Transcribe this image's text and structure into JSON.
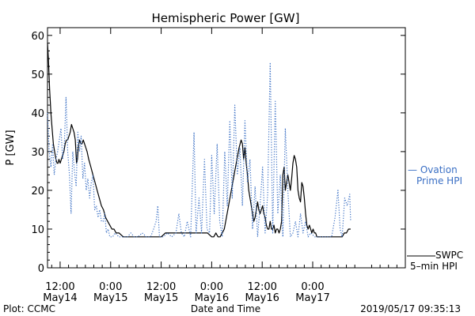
{
  "chart_data": {
    "type": "line",
    "title": "Hemispheric Power [GW]",
    "ylabel": "P [GW]",
    "xlabel": "Date and Time",
    "ylim": [
      0,
      62
    ],
    "yticks": [
      0,
      10,
      20,
      30,
      40,
      50,
      60
    ],
    "x_unit": "hours since 2019-05-14 00:00 UTC",
    "xlim": [
      9,
      94
    ],
    "xticks": [
      {
        "x": 12,
        "line1": "12:00",
        "line2": "May14"
      },
      {
        "x": 24,
        "line1": "0:00",
        "line2": "May15"
      },
      {
        "x": 36,
        "line1": "12:00",
        "line2": "May15"
      },
      {
        "x": 48,
        "line1": "0:00",
        "line2": "May16"
      },
      {
        "x": 60,
        "line1": "12:00",
        "line2": "May16"
      },
      {
        "x": 72,
        "line1": "0:00",
        "line2": "May17"
      }
    ],
    "series": [
      {
        "name": "SWPC 5-min HPI",
        "legend_lines": [
          "SWPC",
          "5–min HPI"
        ],
        "color": "#000000",
        "style": "solid",
        "points": [
          [
            9.0,
            58
          ],
          [
            9.2,
            54
          ],
          [
            9.5,
            46
          ],
          [
            9.8,
            40
          ],
          [
            10.1,
            36
          ],
          [
            10.4,
            32
          ],
          [
            10.7,
            30
          ],
          [
            11.0,
            28
          ],
          [
            11.3,
            27
          ],
          [
            11.5,
            27
          ],
          [
            11.7,
            28
          ],
          [
            12.0,
            27
          ],
          [
            12.3,
            28
          ],
          [
            12.6,
            29
          ],
          [
            12.9,
            30
          ],
          [
            13.2,
            32
          ],
          [
            13.5,
            33
          ],
          [
            13.8,
            33
          ],
          [
            14.1,
            34
          ],
          [
            14.4,
            35
          ],
          [
            14.7,
            37
          ],
          [
            15.0,
            36
          ],
          [
            15.3,
            35
          ],
          [
            15.6,
            33
          ],
          [
            15.9,
            27
          ],
          [
            16.1,
            28
          ],
          [
            16.3,
            31
          ],
          [
            16.6,
            33
          ],
          [
            16.9,
            32
          ],
          [
            17.2,
            32
          ],
          [
            17.5,
            33
          ],
          [
            17.8,
            32
          ],
          [
            18.1,
            31
          ],
          [
            18.4,
            30
          ],
          [
            18.8,
            28
          ],
          [
            19.3,
            26
          ],
          [
            19.8,
            24
          ],
          [
            20.3,
            22
          ],
          [
            20.8,
            20
          ],
          [
            21.3,
            18
          ],
          [
            21.8,
            16
          ],
          [
            22.3,
            15
          ],
          [
            22.8,
            13
          ],
          [
            23.3,
            12
          ],
          [
            23.8,
            11
          ],
          [
            24.3,
            10
          ],
          [
            24.8,
            10
          ],
          [
            25.3,
            9
          ],
          [
            26.0,
            9
          ],
          [
            27.0,
            8
          ],
          [
            28.0,
            8
          ],
          [
            29.0,
            8
          ],
          [
            30.0,
            8
          ],
          [
            31.0,
            8
          ],
          [
            32.0,
            8
          ],
          [
            33.0,
            8
          ],
          [
            34.0,
            8
          ],
          [
            35.0,
            8
          ],
          [
            36.0,
            8
          ],
          [
            37.0,
            9
          ],
          [
            38.0,
            9
          ],
          [
            39.0,
            9
          ],
          [
            40.0,
            9
          ],
          [
            41.0,
            9
          ],
          [
            42.0,
            9
          ],
          [
            43.0,
            9
          ],
          [
            44.0,
            9
          ],
          [
            45.0,
            9
          ],
          [
            46.0,
            9
          ],
          [
            47.0,
            9
          ],
          [
            48.0,
            8
          ],
          [
            48.5,
            8
          ],
          [
            49.0,
            9
          ],
          [
            49.5,
            8
          ],
          [
            50.0,
            8
          ],
          [
            50.5,
            9
          ],
          [
            51.0,
            10
          ],
          [
            51.5,
            13
          ],
          [
            52.0,
            16
          ],
          [
            52.5,
            19
          ],
          [
            53.0,
            22
          ],
          [
            53.5,
            25
          ],
          [
            54.0,
            28
          ],
          [
            54.5,
            31
          ],
          [
            55.0,
            33
          ],
          [
            55.3,
            32
          ],
          [
            55.6,
            28
          ],
          [
            55.9,
            31
          ],
          [
            56.2,
            27
          ],
          [
            56.5,
            24
          ],
          [
            56.8,
            20
          ],
          [
            57.1,
            18
          ],
          [
            57.4,
            16
          ],
          [
            57.7,
            14
          ],
          [
            58.0,
            12
          ],
          [
            58.3,
            13
          ],
          [
            58.6,
            15
          ],
          [
            58.9,
            17
          ],
          [
            59.2,
            15
          ],
          [
            59.5,
            14
          ],
          [
            59.8,
            15
          ],
          [
            60.1,
            16
          ],
          [
            60.4,
            14
          ],
          [
            60.7,
            13
          ],
          [
            61.0,
            11
          ],
          [
            61.3,
            10
          ],
          [
            61.6,
            10
          ],
          [
            61.9,
            12
          ],
          [
            62.2,
            10
          ],
          [
            62.5,
            10
          ],
          [
            62.8,
            11
          ],
          [
            63.1,
            9
          ],
          [
            63.4,
            10
          ],
          [
            63.7,
            10
          ],
          [
            64.0,
            9
          ],
          [
            64.3,
            10
          ],
          [
            64.6,
            12
          ],
          [
            64.9,
            24
          ],
          [
            65.2,
            26
          ],
          [
            65.5,
            20
          ],
          [
            65.8,
            22
          ],
          [
            66.1,
            24
          ],
          [
            66.4,
            22
          ],
          [
            66.7,
            20
          ],
          [
            67.0,
            23
          ],
          [
            67.3,
            27
          ],
          [
            67.6,
            29
          ],
          [
            67.9,
            28
          ],
          [
            68.2,
            26
          ],
          [
            68.5,
            20
          ],
          [
            68.8,
            18
          ],
          [
            69.1,
            17
          ],
          [
            69.4,
            22
          ],
          [
            69.7,
            21
          ],
          [
            70.0,
            18
          ],
          [
            70.3,
            14
          ],
          [
            70.6,
            11
          ],
          [
            70.9,
            10
          ],
          [
            71.2,
            11
          ],
          [
            71.5,
            10
          ],
          [
            71.8,
            9
          ],
          [
            72.1,
            10
          ],
          [
            72.4,
            9
          ],
          [
            72.7,
            9
          ],
          [
            73.0,
            8
          ],
          [
            74.0,
            8
          ],
          [
            75.0,
            8
          ],
          [
            76.0,
            8
          ],
          [
            77.0,
            8
          ],
          [
            78.0,
            8
          ],
          [
            79.0,
            8
          ],
          [
            79.5,
            9
          ],
          [
            80.0,
            9
          ],
          [
            80.5,
            10
          ],
          [
            81.0,
            10
          ]
        ]
      },
      {
        "name": "Ovation Prime HPI",
        "legend_lines": [
          "— Ovation",
          "Prime HPI"
        ],
        "color": "#3a6fc4",
        "style": "dotted",
        "points": [
          [
            9.0,
            40
          ],
          [
            9.4,
            30
          ],
          [
            9.8,
            26
          ],
          [
            10.2,
            32
          ],
          [
            10.6,
            24
          ],
          [
            11.0,
            28
          ],
          [
            11.4,
            30
          ],
          [
            11.8,
            33
          ],
          [
            12.2,
            36
          ],
          [
            12.6,
            28
          ],
          [
            13.0,
            32
          ],
          [
            13.4,
            44
          ],
          [
            13.8,
            30
          ],
          [
            14.2,
            24
          ],
          [
            14.6,
            14
          ],
          [
            15.0,
            30
          ],
          [
            15.4,
            25
          ],
          [
            15.8,
            21
          ],
          [
            16.2,
            35
          ],
          [
            16.6,
            30
          ],
          [
            17.0,
            34
          ],
          [
            17.4,
            23
          ],
          [
            17.8,
            27
          ],
          [
            18.2,
            20
          ],
          [
            18.6,
            23
          ],
          [
            19.0,
            18
          ],
          [
            19.4,
            22
          ],
          [
            19.8,
            24
          ],
          [
            20.2,
            15
          ],
          [
            20.6,
            16
          ],
          [
            21.0,
            13
          ],
          [
            21.4,
            15
          ],
          [
            21.8,
            12
          ],
          [
            22.2,
            12
          ],
          [
            22.6,
            14
          ],
          [
            23.0,
            9
          ],
          [
            23.4,
            10
          ],
          [
            23.8,
            8
          ],
          [
            24.5,
            8
          ],
          [
            25.0,
            9
          ],
          [
            26.0,
            8
          ],
          [
            27.0,
            8
          ],
          [
            28.0,
            8
          ],
          [
            28.8,
            9
          ],
          [
            29.6,
            8
          ],
          [
            30.5,
            8
          ],
          [
            31.5,
            9
          ],
          [
            32.5,
            8
          ],
          [
            33.5,
            8
          ],
          [
            34.2,
            10
          ],
          [
            34.8,
            12
          ],
          [
            35.2,
            16
          ],
          [
            35.6,
            8
          ],
          [
            36.5,
            8
          ],
          [
            37.5,
            9
          ],
          [
            38.5,
            8
          ],
          [
            39.5,
            9
          ],
          [
            40.2,
            14
          ],
          [
            40.8,
            9
          ],
          [
            41.5,
            8
          ],
          [
            42.2,
            12
          ],
          [
            43.0,
            8
          ],
          [
            43.8,
            35
          ],
          [
            44.3,
            9
          ],
          [
            45.0,
            18
          ],
          [
            45.6,
            9
          ],
          [
            46.3,
            28
          ],
          [
            46.9,
            10
          ],
          [
            47.5,
            9
          ],
          [
            48.0,
            29
          ],
          [
            48.6,
            14
          ],
          [
            49.3,
            32
          ],
          [
            49.9,
            12
          ],
          [
            50.5,
            8
          ],
          [
            51.1,
            30
          ],
          [
            51.7,
            16
          ],
          [
            52.3,
            38
          ],
          [
            52.9,
            18
          ],
          [
            53.5,
            42
          ],
          [
            54.1,
            24
          ],
          [
            54.7,
            31
          ],
          [
            55.3,
            16
          ],
          [
            55.9,
            38
          ],
          [
            56.5,
            22
          ],
          [
            57.1,
            28
          ],
          [
            57.7,
            10
          ],
          [
            58.3,
            21
          ],
          [
            58.9,
            8
          ],
          [
            59.5,
            16
          ],
          [
            60.1,
            26
          ],
          [
            60.7,
            9
          ],
          [
            61.3,
            19
          ],
          [
            61.9,
            53
          ],
          [
            62.5,
            9
          ],
          [
            63.1,
            43
          ],
          [
            63.7,
            14
          ],
          [
            64.3,
            24
          ],
          [
            64.9,
            8
          ],
          [
            65.5,
            36
          ],
          [
            66.1,
            20
          ],
          [
            66.7,
            8
          ],
          [
            67.3,
            9
          ],
          [
            67.9,
            12
          ],
          [
            68.5,
            8
          ],
          [
            69.1,
            14
          ],
          [
            69.7,
            9
          ],
          [
            70.3,
            12
          ],
          [
            70.9,
            8
          ],
          [
            71.5,
            9
          ],
          [
            72.5,
            8
          ],
          [
            73.5,
            8
          ],
          [
            74.5,
            8
          ],
          [
            75.5,
            8
          ],
          [
            76.5,
            8
          ],
          [
            77.3,
            13
          ],
          [
            78.0,
            20
          ],
          [
            78.5,
            10
          ],
          [
            79.0,
            8
          ],
          [
            79.6,
            18
          ],
          [
            80.2,
            16
          ],
          [
            80.8,
            19
          ],
          [
            81.0,
            12
          ]
        ]
      }
    ],
    "footer": {
      "left": "Plot: CCMC",
      "right": "2019/05/17 09:35:13"
    }
  }
}
